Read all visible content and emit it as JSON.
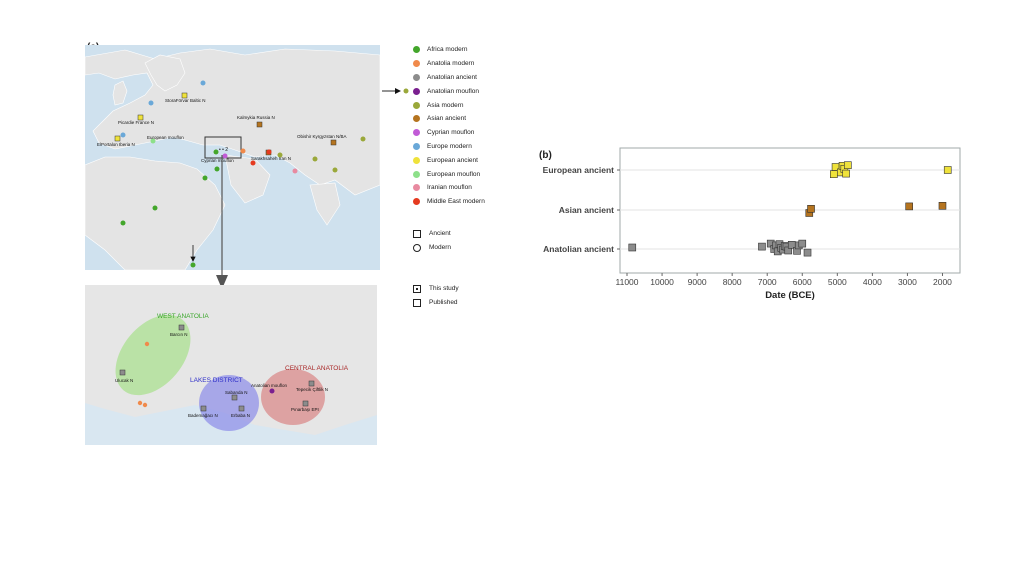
{
  "panel_a": {
    "label": "(a)",
    "map_labels": [
      "StoraFörvar Baltic N",
      "Picardie France N",
      "European mouflon",
      "ElPortalon Iberia N",
      "Kalmykia Russia N",
      "Obishir Kyrgyzstan N/BA",
      "Cyprian mouflon",
      "Sarakhsaheh Iran N"
    ],
    "inset_marks": "• • 2",
    "regions": {
      "west": "WEST ANATOLIA",
      "lakes": "LAKES DISTRICT",
      "central": "CENTRAL ANATOLIA"
    },
    "sites": [
      "Barcın N",
      "Ulucak N",
      "Anatolian mouflon",
      "Tepecik Çiftlik N",
      "Sabanda N",
      "Bademağacı N",
      "Erbaba N",
      "Pınarbaşı EPI"
    ],
    "legend": {
      "populations": [
        {
          "label": "Africa modern",
          "color": "#43a62b"
        },
        {
          "label": "Anatolia modern",
          "color": "#f08a4b"
        },
        {
          "label": "Anatolian ancient",
          "color": "#8c8c8c"
        },
        {
          "label": "Anatolian mouflon",
          "color": "#7a1f8f"
        },
        {
          "label": "Asia modern",
          "color": "#9aa83a"
        },
        {
          "label": "Asian ancient",
          "color": "#b5741f"
        },
        {
          "label": "Cyprian mouflon",
          "color": "#c15bd6"
        },
        {
          "label": "Europe modern",
          "color": "#6aa8d8"
        },
        {
          "label": "European ancient",
          "color": "#efe23b"
        },
        {
          "label": "European mouflon",
          "color": "#8de08a"
        },
        {
          "label": "Iranian mouflon",
          "color": "#e88aa0"
        },
        {
          "label": "Middle East modern",
          "color": "#e53a1f"
        }
      ],
      "shape_ancient": "Ancient",
      "shape_modern": "Modern",
      "this_study": "This study",
      "published": "Published"
    }
  },
  "chart_data": {
    "label": "(b)",
    "type": "scatter",
    "xlabel": "Date (BCE)",
    "ylabel": "",
    "xlim": [
      11200,
      1500
    ],
    "x_reversed": true,
    "x_ticks": [
      11000,
      10000,
      9000,
      8000,
      7000,
      6000,
      5000,
      4000,
      3000,
      2000
    ],
    "categories": [
      "European ancient",
      "Asian ancient",
      "Anatolian ancient"
    ],
    "grid": true,
    "series": [
      {
        "category": "European ancient",
        "color": "#efe23b",
        "x": [
          5100,
          5050,
          4900,
          4850,
          4800,
          4750,
          4700,
          1850
        ],
        "jitter": [
          -0.14,
          0.1,
          -0.08,
          0.14,
          0.04,
          -0.12,
          0.16,
          0.0
        ]
      },
      {
        "category": "Asian ancient",
        "color": "#b5741f",
        "x": [
          5800,
          5750,
          2950,
          2000
        ],
        "jitter": [
          -0.1,
          0.04,
          0.12,
          0.14
        ]
      },
      {
        "category": "Anatolian ancient",
        "color": "#8c8c8c",
        "x": [
          10850,
          7150,
          6900,
          6800,
          6750,
          6700,
          6650,
          6600,
          6550,
          6500,
          6450,
          6400,
          6300,
          6150,
          6100,
          6000,
          5850
        ],
        "jitter": [
          0.05,
          0.08,
          0.18,
          0.0,
          0.12,
          -0.08,
          0.16,
          0.04,
          -0.02,
          0.1,
          0.08,
          -0.05,
          0.14,
          -0.06,
          0.12,
          0.18,
          -0.12
        ]
      }
    ]
  }
}
